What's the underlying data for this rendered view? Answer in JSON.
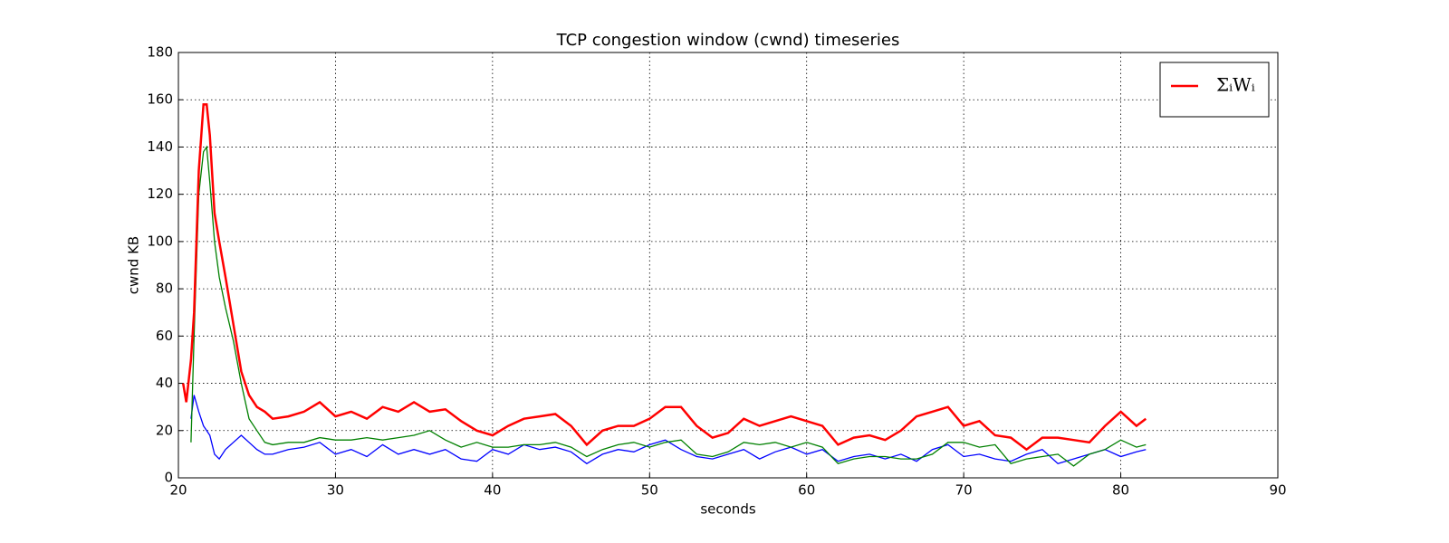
{
  "chart_data": {
    "type": "line",
    "title": "TCP congestion window (cwnd) timeseries",
    "xlabel": "seconds",
    "ylabel": "cwnd KB",
    "x": [
      20.3,
      20.5,
      20.8,
      21.0,
      21.3,
      21.6,
      21.8,
      22.0,
      22.3,
      22.6,
      23.0,
      23.5,
      24.0,
      24.5,
      25.0,
      25.5,
      26,
      27,
      28,
      29,
      30,
      31,
      32,
      33,
      34,
      35,
      36,
      37,
      38,
      39,
      40,
      41,
      42,
      43,
      44,
      45,
      46,
      47,
      48,
      49,
      50,
      51,
      52,
      53,
      54,
      55,
      56,
      57,
      58,
      59,
      60,
      61,
      62,
      63,
      64,
      65,
      66,
      67,
      68,
      69,
      70,
      71,
      72,
      73,
      74,
      75,
      76,
      77,
      78,
      79,
      80,
      81,
      81.6
    ],
    "series": [
      {
        "name": "ΣᵢWᵢ",
        "color": "#ff0000",
        "values": [
          40,
          32,
          50,
          70,
          130,
          158,
          158,
          145,
          112,
          100,
          85,
          65,
          45,
          35,
          30,
          28,
          25,
          26,
          28,
          32,
          26,
          28,
          25,
          30,
          28,
          32,
          28,
          29,
          24,
          20,
          18,
          22,
          25,
          26,
          27,
          22,
          14,
          20,
          22,
          22,
          25,
          30,
          30,
          22,
          17,
          19,
          25,
          22,
          24,
          26,
          24,
          22,
          14,
          17,
          18,
          16,
          20,
          26,
          28,
          30,
          22,
          24,
          18,
          17,
          12,
          17,
          17,
          16,
          15,
          22,
          28,
          22,
          25
        ]
      },
      {
        "color": "#008000",
        "values": [
          null,
          null,
          15,
          60,
          120,
          138,
          140,
          125,
          100,
          85,
          72,
          58,
          40,
          25,
          20,
          15,
          14,
          15,
          15,
          17,
          16,
          16,
          17,
          16,
          17,
          18,
          20,
          16,
          13,
          15,
          13,
          13,
          14,
          14,
          15,
          13,
          9,
          12,
          14,
          15,
          13,
          15,
          16,
          10,
          9,
          11,
          15,
          14,
          15,
          13,
          15,
          13,
          6,
          8,
          9,
          9,
          8,
          8,
          10,
          15,
          15,
          13,
          14,
          6,
          8,
          9,
          10,
          5,
          10,
          12,
          16,
          13,
          14
        ]
      },
      {
        "color": "#0000ff",
        "values": [
          null,
          null,
          25,
          35,
          28,
          22,
          20,
          18,
          10,
          8,
          12,
          15,
          18,
          15,
          12,
          10,
          10,
          12,
          13,
          15,
          10,
          12,
          9,
          14,
          10,
          12,
          10,
          12,
          8,
          7,
          12,
          10,
          14,
          12,
          13,
          11,
          6,
          10,
          12,
          11,
          14,
          16,
          12,
          9,
          8,
          10,
          12,
          8,
          11,
          13,
          10,
          12,
          7,
          9,
          10,
          8,
          10,
          7,
          12,
          14,
          9,
          10,
          8,
          7,
          10,
          12,
          6,
          8,
          10,
          12,
          9,
          11,
          12
        ]
      }
    ],
    "xlim": [
      20,
      90
    ],
    "xticks": [
      20,
      30,
      40,
      50,
      60,
      70,
      80,
      90
    ],
    "ylim": [
      0,
      180
    ],
    "yticks": [
      0,
      20,
      40,
      60,
      80,
      100,
      120,
      140,
      160,
      180
    ],
    "grid": true,
    "legend": "upper right"
  }
}
